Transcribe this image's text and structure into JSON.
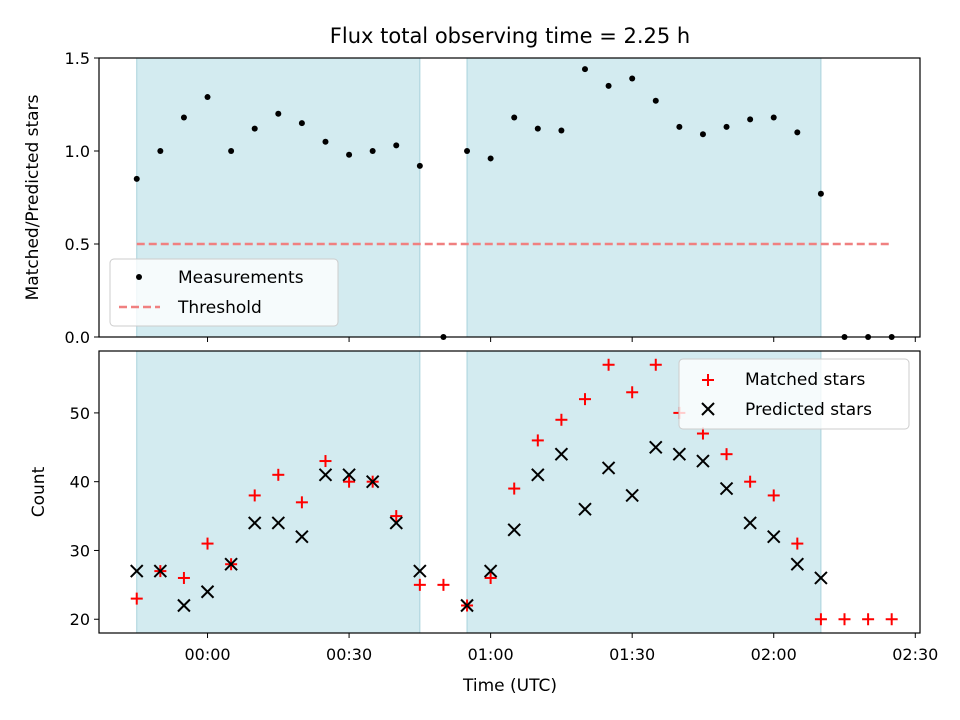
{
  "figure": {
    "title": "Flux total observing time = 2.25 h",
    "xlabel": "Time (UTC)",
    "colors": {
      "shade": "#d3ebf0",
      "measurement": "#000000",
      "threshold": "#f08080",
      "matched": "#ff0000",
      "predicted": "#000000"
    }
  },
  "chart_data": [
    {
      "type": "scatter",
      "panel": "top",
      "ylabel": "Matched/Predicted stars",
      "xlim": [
        "23:37",
        "02:31"
      ],
      "ylim": [
        0,
        1.5
      ],
      "yticks": [
        "0.0",
        "0.5",
        "1.0",
        "1.5"
      ],
      "grid": false,
      "legend_position": "lower-left",
      "shaded_intervals": [
        [
          "23:45",
          "00:45"
        ],
        [
          "00:55",
          "02:10"
        ]
      ],
      "threshold": {
        "name": "Threshold",
        "value": 0.5,
        "x_range": [
          "23:45",
          "02:25"
        ],
        "style": "dashed"
      },
      "series": [
        {
          "name": "Measurements",
          "marker": "dot",
          "x": [
            "23:45",
            "23:50",
            "23:55",
            "00:00",
            "00:05",
            "00:10",
            "00:15",
            "00:20",
            "00:25",
            "00:30",
            "00:35",
            "00:40",
            "00:45",
            "00:50",
            "00:55",
            "01:00",
            "01:05",
            "01:10",
            "01:15",
            "01:20",
            "01:25",
            "01:30",
            "01:35",
            "01:40",
            "01:45",
            "01:50",
            "01:55",
            "02:00",
            "02:05",
            "02:10",
            "02:15",
            "02:20",
            "02:25"
          ],
          "y": [
            0.85,
            1.0,
            1.18,
            1.29,
            1.0,
            1.12,
            1.2,
            1.15,
            1.05,
            0.98,
            1.0,
            1.03,
            0.92,
            0.0,
            1.0,
            0.96,
            1.18,
            1.12,
            1.11,
            1.44,
            1.35,
            1.39,
            1.27,
            1.13,
            1.09,
            1.13,
            1.17,
            1.18,
            1.1,
            0.77,
            0.0,
            0.0,
            0.0
          ]
        }
      ]
    },
    {
      "type": "scatter",
      "panel": "bottom",
      "ylabel": "Count",
      "xlim": [
        "23:37",
        "02:31"
      ],
      "ylim": [
        18,
        59
      ],
      "yticks": [
        "20",
        "30",
        "40",
        "50"
      ],
      "xticks": [
        "00:00",
        "00:30",
        "01:00",
        "01:30",
        "02:00",
        "02:30"
      ],
      "grid": false,
      "legend_position": "upper-right",
      "shaded_intervals": [
        [
          "23:45",
          "00:45"
        ],
        [
          "00:55",
          "02:10"
        ]
      ],
      "series": [
        {
          "name": "Matched stars",
          "marker": "plus",
          "x": [
            "23:45",
            "23:50",
            "23:55",
            "00:00",
            "00:05",
            "00:10",
            "00:15",
            "00:20",
            "00:25",
            "00:30",
            "00:35",
            "00:40",
            "00:45",
            "00:50",
            "00:55",
            "01:00",
            "01:05",
            "01:10",
            "01:15",
            "01:20",
            "01:25",
            "01:30",
            "01:35",
            "01:40",
            "01:45",
            "01:50",
            "01:55",
            "02:00",
            "02:05",
            "02:10",
            "02:15",
            "02:20",
            "02:25"
          ],
          "y": [
            23,
            27,
            26,
            31,
            28,
            38,
            41,
            37,
            43,
            40,
            40,
            35,
            25,
            25,
            22,
            26,
            39,
            46,
            49,
            52,
            57,
            53,
            57,
            50,
            47,
            44,
            40,
            38,
            31,
            20,
            20,
            20,
            20
          ]
        },
        {
          "name": "Predicted stars",
          "marker": "x",
          "x": [
            "23:45",
            "23:50",
            "23:55",
            "00:00",
            "00:05",
            "00:10",
            "00:15",
            "00:20",
            "00:25",
            "00:30",
            "00:35",
            "00:40",
            "00:45",
            "00:55",
            "01:00",
            "01:05",
            "01:10",
            "01:15",
            "01:20",
            "01:25",
            "01:30",
            "01:35",
            "01:40",
            "01:45",
            "01:50",
            "01:55",
            "02:00",
            "02:05",
            "02:10"
          ],
          "y": [
            27,
            27,
            22,
            24,
            28,
            34,
            34,
            32,
            41,
            41,
            40,
            34,
            27,
            22,
            27,
            33,
            41,
            44,
            36,
            42,
            38,
            45,
            44,
            43,
            39,
            34,
            32,
            28,
            26
          ]
        }
      ]
    }
  ]
}
